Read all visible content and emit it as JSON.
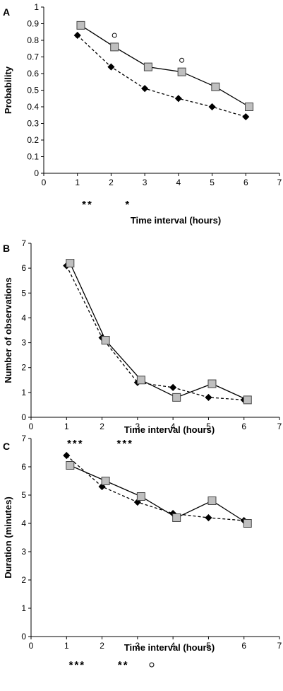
{
  "chart_data": [
    {
      "type": "line",
      "panel": "A",
      "xlabel": "Time interval (hours)",
      "ylabel": "Probability",
      "xlim": [
        0,
        7
      ],
      "ylim": [
        0,
        1
      ],
      "xticks": [
        "0",
        "1",
        "2",
        "3",
        "4",
        "5",
        "6",
        "7"
      ],
      "yticks": [
        "0",
        "0.1",
        "0.2",
        "0.3",
        "0.4",
        "0.5",
        "0.6",
        "0.7",
        "0.8",
        "0.9",
        "1"
      ],
      "series": [
        {
          "marker": "diamond",
          "line": "dashed",
          "color": "#000000",
          "x": [
            1,
            2,
            3,
            4,
            5,
            6
          ],
          "values": [
            0.83,
            0.64,
            0.51,
            0.45,
            0.4,
            0.34
          ]
        },
        {
          "marker": "square",
          "line": "solid",
          "color": "#bfbfbf",
          "x": [
            1.1,
            2.1,
            3.1,
            4.1,
            5.1,
            6.1
          ],
          "values": [
            0.89,
            0.76,
            0.64,
            0.61,
            0.52,
            0.4
          ]
        }
      ],
      "annotations": [
        {
          "text": "**",
          "x": 1.3,
          "pos": "below-axis"
        },
        {
          "text": "*",
          "x": 2.5,
          "pos": "below-axis"
        },
        {
          "text": "o",
          "x": 2.1,
          "y": 0.83,
          "pos": "plot"
        },
        {
          "text": "o",
          "x": 4.1,
          "y": 0.68,
          "pos": "plot"
        }
      ]
    },
    {
      "type": "line",
      "panel": "B",
      "xlabel": "Time interval (hours)",
      "ylabel": "Number of observations",
      "xlim": [
        0,
        7
      ],
      "ylim": [
        0,
        7
      ],
      "xticks": [
        "0",
        "1",
        "2",
        "3",
        "4",
        "5",
        "6",
        "7"
      ],
      "yticks": [
        "0",
        "1",
        "2",
        "3",
        "4",
        "5",
        "6",
        "7"
      ],
      "series": [
        {
          "marker": "diamond",
          "line": "dashed",
          "color": "#000000",
          "x": [
            1,
            2,
            3,
            4,
            5,
            6
          ],
          "values": [
            6.1,
            3.2,
            1.4,
            1.2,
            0.8,
            0.7
          ]
        },
        {
          "marker": "square",
          "line": "solid",
          "color": "#bfbfbf",
          "x": [
            1.1,
            2.1,
            3.1,
            4.1,
            5.1,
            6.1
          ],
          "values": [
            6.2,
            3.1,
            1.5,
            0.8,
            1.35,
            0.7
          ]
        }
      ],
      "annotations": [
        {
          "text": "***",
          "x": 1.25,
          "pos": "below-axis"
        },
        {
          "text": "***",
          "x": 2.65,
          "pos": "below-axis"
        }
      ]
    },
    {
      "type": "line",
      "panel": "C",
      "xlabel": "Time interval (hours)",
      "ylabel": "Duration (minutes)",
      "xlim": [
        0,
        7
      ],
      "ylim": [
        0,
        7
      ],
      "xticks": [
        "0",
        "1",
        "2",
        "3",
        "4",
        "5",
        "6",
        "7"
      ],
      "yticks": [
        "0",
        "1",
        "2",
        "3",
        "4",
        "5",
        "6",
        "7"
      ],
      "series": [
        {
          "marker": "diamond",
          "line": "dashed",
          "color": "#000000",
          "x": [
            1,
            2,
            3,
            4,
            5,
            6
          ],
          "values": [
            6.4,
            5.3,
            4.75,
            4.35,
            4.2,
            4.1
          ]
        },
        {
          "marker": "square",
          "line": "solid",
          "color": "#bfbfbf",
          "x": [
            1.1,
            2.1,
            3.1,
            4.1,
            5.1,
            6.1
          ],
          "values": [
            6.05,
            5.5,
            4.95,
            4.2,
            4.8,
            4.0
          ]
        }
      ],
      "annotations": [
        {
          "text": "***",
          "x": 1.3,
          "pos": "below-axis"
        },
        {
          "text": "**",
          "x": 2.6,
          "pos": "below-axis"
        },
        {
          "text": "o",
          "x": 3.4,
          "pos": "below-axis"
        }
      ]
    }
  ]
}
